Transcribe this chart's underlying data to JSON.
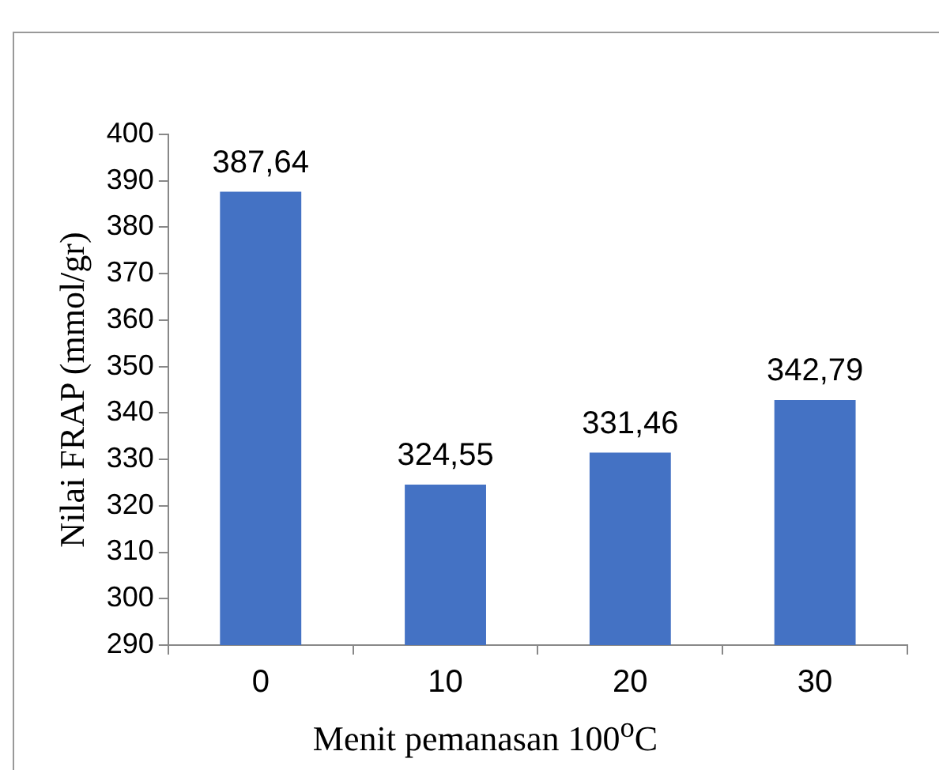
{
  "chart_data": {
    "type": "bar",
    "xlabel": "Menit pemanasan 100$^{o}$C",
    "ylabel": "Nilai FRAP (mmol/gr)",
    "categories": [
      "0",
      "10",
      "20",
      "30"
    ],
    "values": [
      387.64,
      324.55,
      331.46,
      342.79
    ],
    "value_labels": [
      "387,64",
      "324,55",
      "331,46",
      "342,79"
    ],
    "color": "#4472c4",
    "ylim": [
      290,
      400
    ],
    "yticks": [
      290,
      300,
      310,
      320,
      330,
      340,
      350,
      360,
      370,
      380,
      390,
      400
    ],
    "grid": false
  }
}
